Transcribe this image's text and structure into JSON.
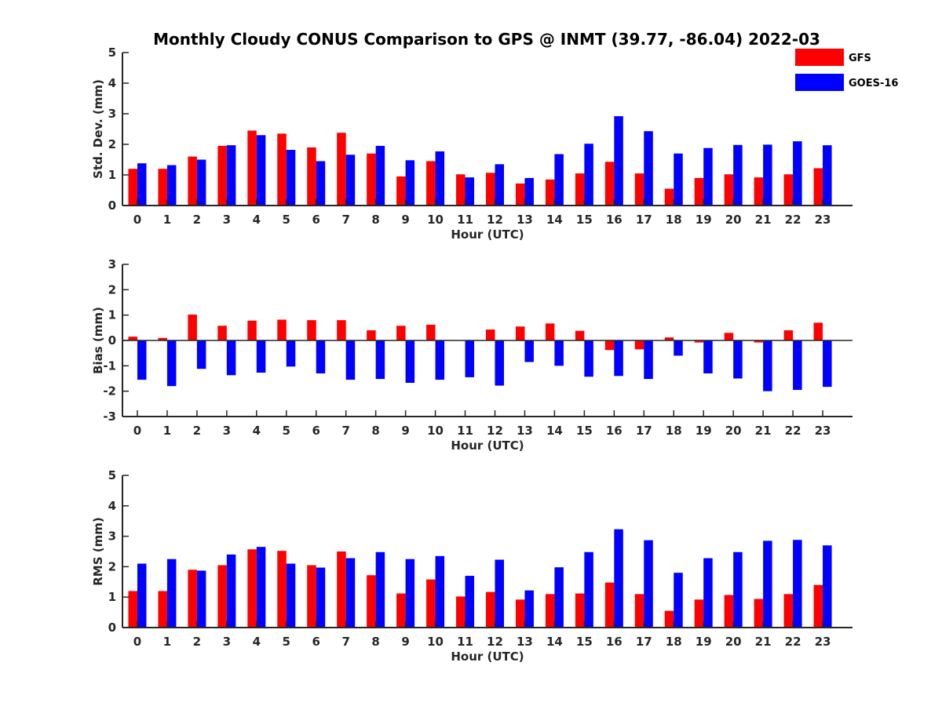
{
  "title": "Monthly Cloudy CONUS Comparison to GPS @ INMT (39.77, -86.04) 2022-03",
  "legend": [
    {
      "name": "GFS",
      "color": "#ff0000"
    },
    {
      "name": "GOES-16",
      "color": "#0000ff"
    }
  ],
  "chart_data": [
    {
      "type": "bar",
      "xlabel": "Hour (UTC)",
      "ylabel": "Std. Dev. (mm)",
      "ylim": [
        0,
        5
      ],
      "yticks": [
        0,
        1,
        2,
        3,
        4,
        5
      ],
      "categories": [
        "0",
        "1",
        "2",
        "3",
        "4",
        "5",
        "6",
        "7",
        "8",
        "9",
        "10",
        "11",
        "12",
        "13",
        "14",
        "15",
        "16",
        "17",
        "18",
        "19",
        "20",
        "21",
        "22",
        "23"
      ],
      "series": [
        {
          "name": "GFS",
          "color": "#ff0000",
          "values": [
            1.2,
            1.2,
            1.6,
            1.95,
            2.45,
            2.35,
            1.9,
            2.38,
            1.7,
            0.95,
            1.45,
            1.02,
            1.07,
            0.72,
            0.85,
            1.05,
            1.43,
            1.05,
            0.55,
            0.9,
            1.02,
            0.92,
            1.02,
            1.22
          ]
        },
        {
          "name": "GOES-16",
          "color": "#0000ff",
          "values": [
            1.38,
            1.32,
            1.5,
            1.97,
            2.3,
            1.82,
            1.45,
            1.66,
            1.95,
            1.48,
            1.77,
            0.92,
            1.35,
            0.9,
            1.68,
            2.02,
            2.92,
            2.43,
            1.7,
            1.88,
            1.98,
            1.99,
            2.1,
            1.97
          ]
        }
      ]
    },
    {
      "type": "bar",
      "xlabel": "Hour (UTC)",
      "ylabel": "Bias (mm)",
      "ylim": [
        -3,
        3
      ],
      "yticks": [
        -3,
        -2,
        -1,
        0,
        1,
        2,
        3
      ],
      "categories": [
        "0",
        "1",
        "2",
        "3",
        "4",
        "5",
        "6",
        "7",
        "8",
        "9",
        "10",
        "11",
        "12",
        "13",
        "14",
        "15",
        "16",
        "17",
        "18",
        "19",
        "20",
        "21",
        "22",
        "23"
      ],
      "series": [
        {
          "name": "GFS",
          "color": "#ff0000",
          "values": [
            0.15,
            0.1,
            1.02,
            0.58,
            0.78,
            0.82,
            0.8,
            0.8,
            0.4,
            0.58,
            0.62,
            0.0,
            0.43,
            0.55,
            0.67,
            0.38,
            -0.38,
            -0.35,
            0.12,
            -0.08,
            0.3,
            -0.08,
            0.4,
            0.7
          ]
        },
        {
          "name": "GOES-16",
          "color": "#0000ff",
          "values": [
            -1.55,
            -1.8,
            -1.12,
            -1.37,
            -1.27,
            -1.03,
            -1.3,
            -1.55,
            -1.52,
            -1.67,
            -1.55,
            -1.45,
            -1.78,
            -0.85,
            -1.0,
            -1.43,
            -1.4,
            -1.52,
            -0.6,
            -1.3,
            -1.5,
            -2.0,
            -1.95,
            -1.83
          ]
        }
      ]
    },
    {
      "type": "bar",
      "xlabel": "Hour (UTC)",
      "ylabel": "RMS (mm)",
      "ylim": [
        0,
        5
      ],
      "yticks": [
        0,
        1,
        2,
        3,
        4,
        5
      ],
      "categories": [
        "0",
        "1",
        "2",
        "3",
        "4",
        "5",
        "6",
        "7",
        "8",
        "9",
        "10",
        "11",
        "12",
        "13",
        "14",
        "15",
        "16",
        "17",
        "18",
        "19",
        "20",
        "21",
        "22",
        "23"
      ],
      "series": [
        {
          "name": "GFS",
          "color": "#ff0000",
          "values": [
            1.2,
            1.2,
            1.9,
            2.05,
            2.57,
            2.52,
            2.05,
            2.5,
            1.72,
            1.12,
            1.58,
            1.02,
            1.17,
            0.92,
            1.1,
            1.12,
            1.48,
            1.1,
            0.55,
            0.92,
            1.07,
            0.94,
            1.1,
            1.4
          ]
        },
        {
          "name": "GOES-16",
          "color": "#0000ff",
          "values": [
            2.1,
            2.25,
            1.87,
            2.4,
            2.65,
            2.1,
            1.97,
            2.28,
            2.48,
            2.25,
            2.35,
            1.7,
            2.23,
            1.22,
            1.98,
            2.48,
            3.23,
            2.87,
            1.8,
            2.28,
            2.48,
            2.85,
            2.88,
            2.7
          ]
        }
      ]
    }
  ]
}
